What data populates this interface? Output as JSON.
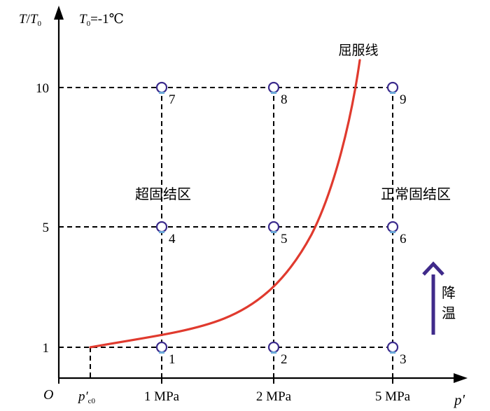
{
  "axes": {
    "y_label_T": "T",
    "y_label_sep": "/",
    "y_label_T0": "T",
    "y_label_T0_sub": "0",
    "x_label": "p′",
    "origin": "O"
  },
  "condition": {
    "T0": "T",
    "T0_sub": "0",
    "value": "=-1℃"
  },
  "y_ticks": [
    "1",
    "5",
    "10"
  ],
  "x_ticks": {
    "pc0_main": "p′",
    "pc0_sub": "c0",
    "p1": "1 MPa",
    "p2": "2 MPa",
    "p3": "5 MPa"
  },
  "points": [
    {
      "id": "1",
      "p": "1 MPa",
      "T_ratio": 1
    },
    {
      "id": "2",
      "p": "2 MPa",
      "T_ratio": 1
    },
    {
      "id": "3",
      "p": "5 MPa",
      "T_ratio": 1
    },
    {
      "id": "4",
      "p": "1 MPa",
      "T_ratio": 5
    },
    {
      "id": "5",
      "p": "2 MPa",
      "T_ratio": 5
    },
    {
      "id": "6",
      "p": "5 MPa",
      "T_ratio": 5
    },
    {
      "id": "7",
      "p": "1 MPa",
      "T_ratio": 10
    },
    {
      "id": "8",
      "p": "2 MPa",
      "T_ratio": 10
    },
    {
      "id": "9",
      "p": "5 MPa",
      "T_ratio": 10
    }
  ],
  "regions": {
    "over": "超固结区",
    "normal": "正常固结区"
  },
  "curve": {
    "label": "屈服线"
  },
  "cooling": {
    "line1": "降",
    "line2": "温"
  },
  "colors": {
    "curve": "#e03a2e",
    "points": "#3a2a8c",
    "arrow": "#3f2a8a",
    "axes": "#000000"
  }
}
